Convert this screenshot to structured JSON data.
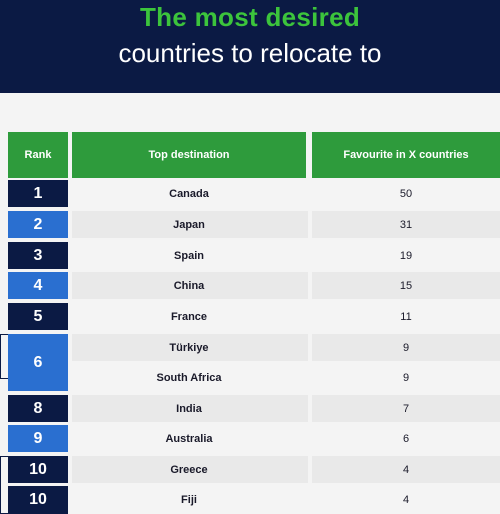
{
  "title": {
    "line1": "The most desired",
    "line2": "countries to relocate to"
  },
  "table": {
    "headers": [
      "Rank",
      "Top destination",
      "Favourite in X countries"
    ],
    "rows": [
      {
        "rank": "1",
        "destination": "Canada",
        "favourite": "50"
      },
      {
        "rank": "2",
        "destination": "Japan",
        "favourite": "31"
      },
      {
        "rank": "3",
        "destination": "Spain",
        "favourite": "19"
      },
      {
        "rank": "4",
        "destination": "China",
        "favourite": "15"
      },
      {
        "rank": "5",
        "destination": "France",
        "favourite": "11"
      },
      {
        "rank": "6",
        "destination": "Türkiye",
        "favourite": "9"
      },
      {
        "rank": "",
        "destination": "South Africa",
        "favourite": "9"
      },
      {
        "rank": "8",
        "destination": "India",
        "favourite": "7"
      },
      {
        "rank": "9",
        "destination": "Australia",
        "favourite": "6"
      },
      {
        "rank": "10",
        "destination": "Greece",
        "favourite": "4"
      },
      {
        "rank": "10",
        "destination": "Fiji",
        "favourite": "4"
      }
    ]
  },
  "colors": {
    "banner": "#0b1a44",
    "title_accent": "#3cc43c",
    "header_green": "#2e9b3c",
    "rank_dark": "#0b1a44",
    "rank_blue": "#2a6fd0",
    "row_light": "#f4f4f4",
    "row_alt": "#e9e9e9"
  }
}
